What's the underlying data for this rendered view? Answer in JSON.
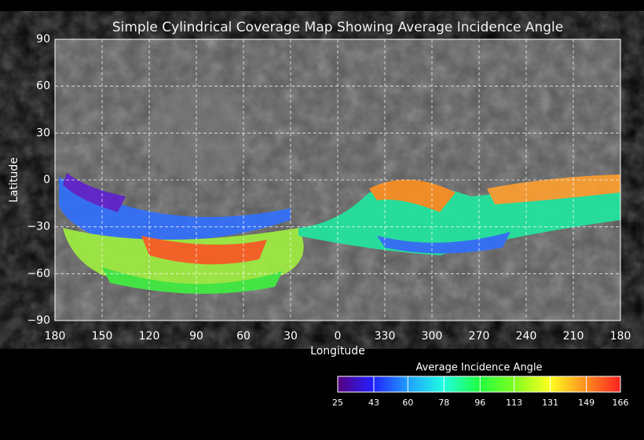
{
  "chart_data": {
    "type": "map",
    "title": "Simple Cylindrical Coverage Map Showing Average Incidence Angle",
    "x_label": "Longitude",
    "y_label": "Latitude",
    "xlim": [
      180,
      -180
    ],
    "xticks": [
      180,
      150,
      120,
      90,
      60,
      30,
      0,
      {
        "value": -30,
        "label": "330"
      },
      {
        "value": -60,
        "label": "300"
      },
      {
        "value": -90,
        "label": "270"
      },
      {
        "value": -120,
        "label": "240"
      },
      {
        "value": -150,
        "label": "210"
      },
      {
        "value": -180,
        "label": "180"
      }
    ],
    "ylim": [
      -90,
      90
    ],
    "yticks": [
      90,
      60,
      30,
      0,
      {
        "value": -30,
        "label": "−30"
      },
      {
        "value": -60,
        "label": "−60"
      },
      {
        "value": -90,
        "label": "−90"
      }
    ],
    "grid": true,
    "colorbar": {
      "title": "Average Incidence Angle",
      "lim": [
        25,
        166
      ],
      "ticks": [
        25,
        43,
        60,
        78,
        96,
        113,
        131,
        149,
        166
      ],
      "colors": [
        "#5a0080",
        "#2020ff",
        "#20a0ff",
        "#20ffe0",
        "#20ff40",
        "#80ff20",
        "#ffff20",
        "#ff9020",
        "#ff2020"
      ]
    }
  }
}
